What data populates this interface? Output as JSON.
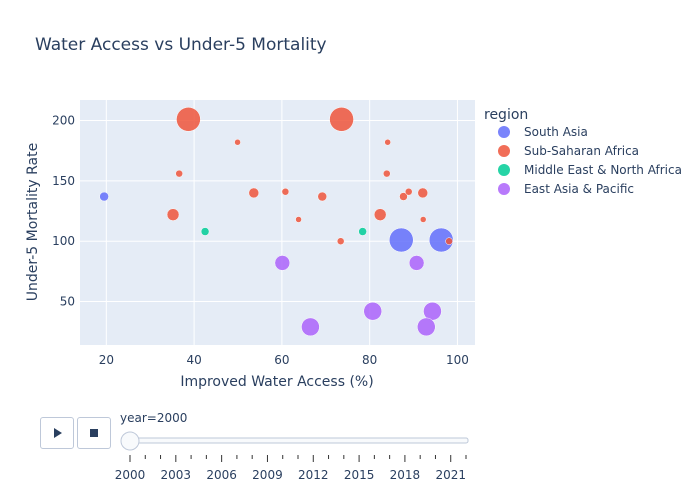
{
  "chart_data": {
    "type": "scatter",
    "title": "Water Access vs Under-5 Mortality",
    "xlabel": "Improved Water Access (%)",
    "ylabel": "Under-5 Mortality Rate",
    "xlim": [
      14,
      104
    ],
    "ylim": [
      14,
      217
    ],
    "xticks": [
      20,
      40,
      60,
      80,
      100
    ],
    "yticks": [
      50,
      100,
      150,
      200
    ],
    "grid": true,
    "legend_title": "region",
    "legend_position": "right",
    "series": [
      {
        "name": "South Asia",
        "color": "#636efa",
        "points": [
          {
            "x": 19.5,
            "y": 137,
            "size": 7
          },
          {
            "x": 87.2,
            "y": 101,
            "size": 22
          },
          {
            "x": 96.3,
            "y": 101,
            "size": 22
          }
        ]
      },
      {
        "name": "Sub-Saharan Africa",
        "color": "#EF553B",
        "points": [
          {
            "x": 38.7,
            "y": 201,
            "size": 22
          },
          {
            "x": 73.6,
            "y": 201,
            "size": 22
          },
          {
            "x": 49.9,
            "y": 182,
            "size": 4
          },
          {
            "x": 84.1,
            "y": 182,
            "size": 4
          },
          {
            "x": 36.6,
            "y": 156,
            "size": 5
          },
          {
            "x": 83.9,
            "y": 156,
            "size": 5
          },
          {
            "x": 53.6,
            "y": 140,
            "size": 8
          },
          {
            "x": 60.8,
            "y": 141,
            "size": 5
          },
          {
            "x": 69.2,
            "y": 137,
            "size": 7
          },
          {
            "x": 87.7,
            "y": 137,
            "size": 6
          },
          {
            "x": 88.9,
            "y": 141,
            "size": 5
          },
          {
            "x": 92.1,
            "y": 140,
            "size": 8
          },
          {
            "x": 35.2,
            "y": 122,
            "size": 10
          },
          {
            "x": 63.8,
            "y": 118,
            "size": 4
          },
          {
            "x": 82.4,
            "y": 122,
            "size": 10
          },
          {
            "x": 92.2,
            "y": 118,
            "size": 4
          },
          {
            "x": 73.4,
            "y": 100,
            "size": 5
          },
          {
            "x": 98.1,
            "y": 100,
            "size": 5
          }
        ]
      },
      {
        "name": "Middle East & North Africa",
        "color": "#00cc96",
        "points": [
          {
            "x": 42.5,
            "y": 108,
            "size": 6
          },
          {
            "x": 78.4,
            "y": 108,
            "size": 6
          }
        ]
      },
      {
        "name": "East Asia & Pacific",
        "color": "#ab63fa",
        "points": [
          {
            "x": 60.1,
            "y": 82,
            "size": 13
          },
          {
            "x": 90.7,
            "y": 82,
            "size": 13
          },
          {
            "x": 80.7,
            "y": 42,
            "size": 16
          },
          {
            "x": 94.3,
            "y": 42,
            "size": 16
          },
          {
            "x": 66.5,
            "y": 29,
            "size": 16
          },
          {
            "x": 92.9,
            "y": 29,
            "size": 16
          }
        ]
      }
    ]
  },
  "animation": {
    "current_label": "year=2000",
    "slider_fraction": 0.0,
    "tick_labels": [
      "2000",
      "2003",
      "2006",
      "2009",
      "2012",
      "2015",
      "2018",
      "2021"
    ],
    "minor_tick_count": 23
  }
}
